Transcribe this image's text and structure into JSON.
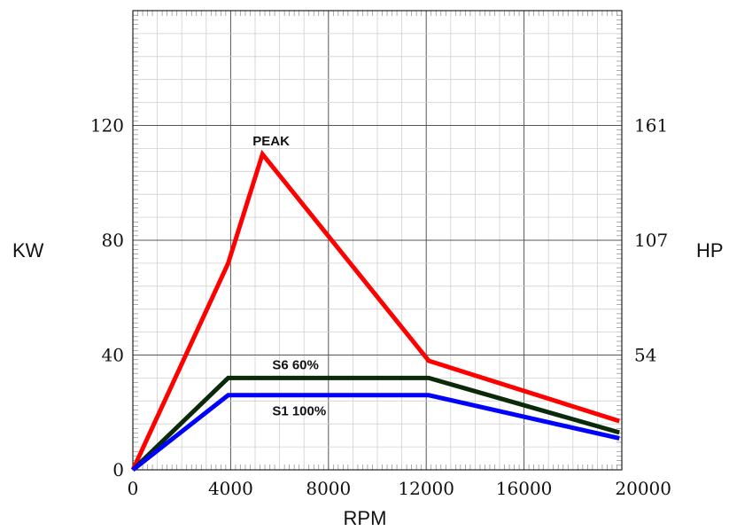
{
  "chart_data": {
    "type": "line",
    "title": "",
    "xlabel": "RPM",
    "ylabel": "KW",
    "y2label": "HP",
    "xlim": [
      0,
      20000
    ],
    "ylim": [
      0,
      160
    ],
    "x_ticks": [
      "0",
      "4000",
      "8000",
      "12000",
      "16000",
      "20000"
    ],
    "x_tick_values": [
      0,
      4000,
      8000,
      12000,
      16000,
      20000
    ],
    "y_ticks": [
      "0",
      "40",
      "80",
      "120"
    ],
    "y_tick_values": [
      0,
      40,
      80,
      120
    ],
    "y2_ticks": [
      "54",
      "107",
      "161"
    ],
    "y2_tick_values": [
      40,
      80,
      120
    ],
    "grid": true,
    "series": [
      {
        "name": "PEAK",
        "color": "#ff0000",
        "points": [
          [
            0,
            0
          ],
          [
            3900,
            72
          ],
          [
            5300,
            110
          ],
          [
            12100,
            38
          ],
          [
            19900,
            17
          ]
        ],
        "label_at": [
          4900,
          113
        ]
      },
      {
        "name": "S6 60%",
        "color": "#0a2a0a",
        "points": [
          [
            0,
            0
          ],
          [
            3900,
            32
          ],
          [
            12100,
            32
          ],
          [
            19900,
            13
          ]
        ],
        "label_at": [
          5700,
          35
        ]
      },
      {
        "name": "S1 100%",
        "color": "#0000ff",
        "points": [
          [
            0,
            0
          ],
          [
            3900,
            26
          ],
          [
            12100,
            26
          ],
          [
            19900,
            11
          ]
        ],
        "label_at": [
          5700,
          19
        ]
      }
    ]
  }
}
